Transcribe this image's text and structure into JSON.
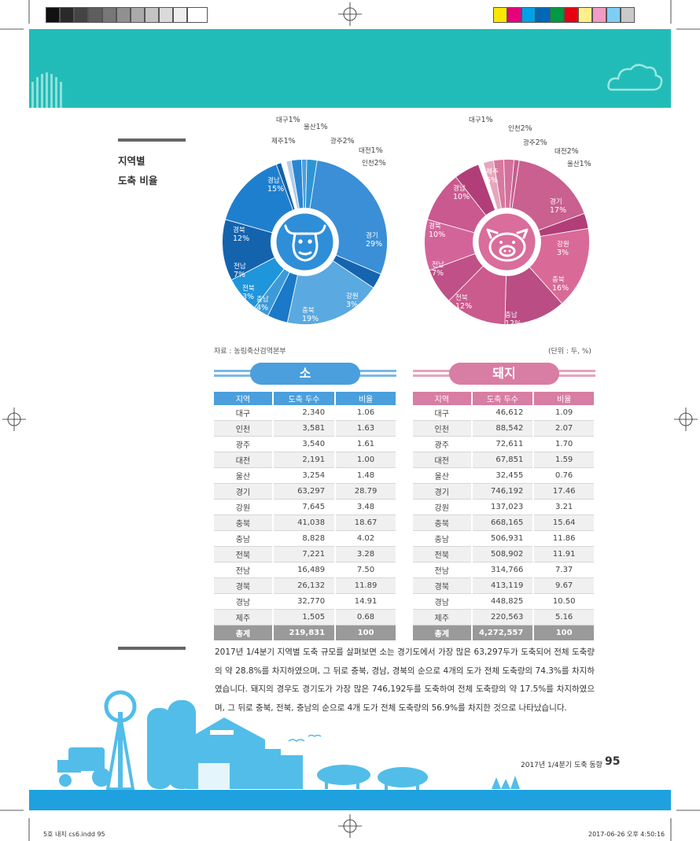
{
  "side_heading": {
    "line1": "지역별",
    "line2": "도축 비율"
  },
  "cattle_chart_labels": [
    {
      "region": "대구",
      "pct": "1%"
    },
    {
      "region": "울산",
      "pct": "1%"
    },
    {
      "region": "제주",
      "pct": "1%"
    },
    {
      "region": "광주",
      "pct": "2%"
    },
    {
      "region": "대전",
      "pct": "1%"
    },
    {
      "region": "인천",
      "pct": "2%"
    },
    {
      "region": "경남",
      "pct": "15%"
    },
    {
      "region": "경북",
      "pct": "12%"
    },
    {
      "region": "전남",
      "pct": "7%"
    },
    {
      "region": "전북",
      "pct": "3%"
    },
    {
      "region": "충남",
      "pct": "4%"
    },
    {
      "region": "충북",
      "pct": "19%"
    },
    {
      "region": "강원",
      "pct": "3%"
    },
    {
      "region": "경기",
      "pct": "29%"
    }
  ],
  "pig_chart_labels": [
    {
      "region": "대구",
      "pct": "1%"
    },
    {
      "region": "인천",
      "pct": "2%"
    },
    {
      "region": "광주",
      "pct": "2%"
    },
    {
      "region": "대전",
      "pct": "2%"
    },
    {
      "region": "울산",
      "pct": "1%"
    },
    {
      "region": "제주",
      "pct": "5%"
    },
    {
      "region": "경남",
      "pct": "10%"
    },
    {
      "region": "경북",
      "pct": "10%"
    },
    {
      "region": "경기",
      "pct": "17%"
    },
    {
      "region": "강원",
      "pct": "3%"
    },
    {
      "region": "전남",
      "pct": "7%"
    },
    {
      "region": "충북",
      "pct": "16%"
    },
    {
      "region": "전북",
      "pct": "12%"
    },
    {
      "region": "충남",
      "pct": "12%"
    }
  ],
  "chart_data": [
    {
      "type": "pie",
      "title": "소",
      "categories": [
        "경기",
        "강원",
        "충북",
        "충남",
        "전북",
        "전남",
        "경북",
        "경남",
        "제주",
        "대구",
        "울산",
        "광주",
        "대전",
        "인천"
      ],
      "values": [
        29,
        3,
        19,
        4,
        3,
        7,
        12,
        15,
        1,
        1,
        1,
        2,
        1,
        2
      ],
      "colors": [
        "#3a8fd6",
        "#1564b0",
        "#5aa9e0",
        "#1a79c8",
        "#3d9ad8",
        "#1f95db",
        "#1463ad",
        "#1f7fcf",
        "#1461a8",
        "#ffffff",
        "#b3cde9",
        "#2a86d2",
        "#4aa0dc",
        "#2c95d6"
      ]
    },
    {
      "type": "pie",
      "title": "돼지",
      "categories": [
        "경기",
        "강원",
        "충북",
        "충남",
        "전북",
        "전남",
        "경북",
        "경남",
        "제주",
        "대구",
        "인천",
        "광주",
        "대전",
        "울산"
      ],
      "values": [
        17,
        3,
        16,
        12,
        12,
        7,
        10,
        10,
        5,
        1,
        2,
        2,
        2,
        1
      ],
      "colors": [
        "#c9608f",
        "#b13e78",
        "#d96a98",
        "#b94d84",
        "#cb5a8d",
        "#c05088",
        "#d3649a",
        "#c9598f",
        "#b13e78",
        "#ffffff",
        "#e6a6bd",
        "#d9789f",
        "#d4709c",
        "#c65d8f"
      ]
    }
  ],
  "source_note": "자료 : 농림축산검역본부",
  "unit_note": "(단위 : 두, %)",
  "cattle_title": "소",
  "pig_title": "돼지",
  "table_headers": {
    "region": "지역",
    "count": "도축 두수",
    "ratio": "비율"
  },
  "cattle_table": [
    {
      "region": "대구",
      "count": "2,340",
      "ratio": "1.06"
    },
    {
      "region": "인천",
      "count": "3,581",
      "ratio": "1.63"
    },
    {
      "region": "광주",
      "count": "3,540",
      "ratio": "1.61"
    },
    {
      "region": "대전",
      "count": "2,191",
      "ratio": "1.00"
    },
    {
      "region": "울산",
      "count": "3,254",
      "ratio": "1.48"
    },
    {
      "region": "경기",
      "count": "63,297",
      "ratio": "28.79"
    },
    {
      "region": "강원",
      "count": "7,645",
      "ratio": "3.48"
    },
    {
      "region": "충북",
      "count": "41,038",
      "ratio": "18.67"
    },
    {
      "region": "충남",
      "count": "8,828",
      "ratio": "4.02"
    },
    {
      "region": "전북",
      "count": "7,221",
      "ratio": "3.28"
    },
    {
      "region": "전남",
      "count": "16,489",
      "ratio": "7.50"
    },
    {
      "region": "경북",
      "count": "26,132",
      "ratio": "11.89"
    },
    {
      "region": "경남",
      "count": "32,770",
      "ratio": "14.91"
    },
    {
      "region": "제주",
      "count": "1,505",
      "ratio": "0.68"
    }
  ],
  "cattle_total": {
    "region": "총계",
    "count": "219,831",
    "ratio": "100"
  },
  "pig_table": [
    {
      "region": "대구",
      "count": "46,612",
      "ratio": "1.09"
    },
    {
      "region": "인천",
      "count": "88,542",
      "ratio": "2.07"
    },
    {
      "region": "광주",
      "count": "72,611",
      "ratio": "1.70"
    },
    {
      "region": "대전",
      "count": "67,851",
      "ratio": "1.59"
    },
    {
      "region": "울산",
      "count": "32,455",
      "ratio": "0.76"
    },
    {
      "region": "경기",
      "count": "746,192",
      "ratio": "17.46"
    },
    {
      "region": "강원",
      "count": "137,023",
      "ratio": "3.21"
    },
    {
      "region": "충북",
      "count": "668,165",
      "ratio": "15.64"
    },
    {
      "region": "충남",
      "count": "506,931",
      "ratio": "11.86"
    },
    {
      "region": "전북",
      "count": "508,902",
      "ratio": "11.91"
    },
    {
      "region": "전남",
      "count": "314,766",
      "ratio": "7.37"
    },
    {
      "region": "경북",
      "count": "413,119",
      "ratio": "9.67"
    },
    {
      "region": "경남",
      "count": "448,825",
      "ratio": "10.50"
    },
    {
      "region": "제주",
      "count": "220,563",
      "ratio": "5.16"
    }
  ],
  "pig_total": {
    "region": "총계",
    "count": "4,272,557",
    "ratio": "100"
  },
  "paragraph": "2017년 1/4분기 지역별 도축 규모를 살펴보면 소는 경기도에서 가장 많은 63,297두가 도축되어 전체 도축량의 약 28.8%를 차지하였으며, 그 뒤로 충북, 경남, 경북의 순으로 4개의 도가 전체 도축량의 74.3%를 차지하였습니다. 돼지의 경우도 경기도가 가장 많은 746,192두를 도축하여 전체 도축량의 약 17.5%를 차지하였으며, 그 뒤로 충북, 전북, 충남의 순으로 4개 도가 전체 도축량의 56.9%를 차지한 것으로 나타났습니다.",
  "running_footer": "2017년 1/4분기 도축 동향",
  "page_number": "95",
  "slug_left": "5호 내지 cs6.indd   95",
  "slug_right": "2017-06-26   오후 4:50:16",
  "colors": {
    "banner": "#22bcb8",
    "cattle": "#3a8fd6",
    "pig": "#d6789f",
    "footer_band": "#1ea1de",
    "illustration": "#52bde9"
  }
}
